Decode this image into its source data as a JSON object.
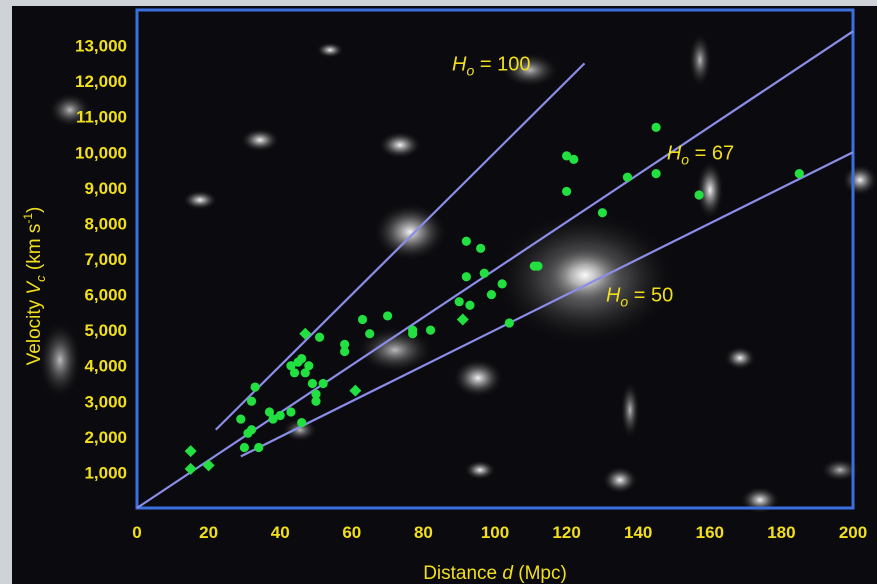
{
  "chart_data": {
    "type": "scatter",
    "title": "",
    "xlabel": {
      "pre": "Distance ",
      "var": "d",
      "post": " (Mpc)"
    },
    "ylabel": {
      "pre": "Velocity ",
      "var": "V",
      "sub": "c",
      "post": " (km s",
      "sup": "-1",
      "end": ")"
    },
    "xlim": [
      0,
      200
    ],
    "ylim": [
      0,
      14000
    ],
    "x_ticks": [
      0,
      20,
      40,
      60,
      80,
      100,
      120,
      140,
      160,
      180,
      200
    ],
    "x_tick_labels": [
      "0",
      "20",
      "40",
      "60",
      "80",
      "100",
      "120",
      "140",
      "160",
      "180",
      "200"
    ],
    "y_ticks": [
      1000,
      2000,
      3000,
      4000,
      5000,
      6000,
      7000,
      8000,
      9000,
      10000,
      11000,
      12000,
      13000
    ],
    "y_tick_labels": [
      "1,000",
      "2,000",
      "3,000",
      "4,000",
      "5,000",
      "6,000",
      "7,000",
      "8,000",
      "9,000",
      "10,000",
      "11,000",
      "12,000",
      "13,000"
    ],
    "colors": {
      "frame": "#3b6fe0",
      "lines": "#8a8ee8",
      "points": "#22e040",
      "text": "#f2df1c",
      "background": "#0b0b0f"
    },
    "fit_lines": [
      {
        "label_base": "H",
        "label_sub": "o",
        "label_rest": " = 100",
        "H0": 100,
        "x_range": [
          22,
          125
        ],
        "label_at": [
          88,
          12300
        ]
      },
      {
        "label_base": "H",
        "label_sub": "o",
        "label_rest": " = 67",
        "H0": 67,
        "x_range": [
          0,
          200
        ],
        "label_at": [
          148,
          9800
        ]
      },
      {
        "label_base": "H",
        "label_sub": "o",
        "label_rest": " = 50",
        "H0": 50,
        "x_range": [
          29,
          200
        ],
        "label_at": [
          131,
          5800
        ]
      }
    ],
    "series": [
      {
        "marker": "circle",
        "points": [
          [
            29,
            2500
          ],
          [
            30,
            1700
          ],
          [
            31,
            2100
          ],
          [
            32,
            2200
          ],
          [
            32,
            3000
          ],
          [
            33,
            3400
          ],
          [
            34,
            1700
          ],
          [
            37,
            2700
          ],
          [
            38,
            2500
          ],
          [
            40,
            2600
          ],
          [
            43,
            2700
          ],
          [
            43,
            4000
          ],
          [
            44,
            3800
          ],
          [
            45,
            4100
          ],
          [
            46,
            2400
          ],
          [
            46,
            4200
          ],
          [
            47,
            3800
          ],
          [
            48,
            4000
          ],
          [
            49,
            3500
          ],
          [
            50,
            3200
          ],
          [
            50,
            3000
          ],
          [
            51,
            4800
          ],
          [
            52,
            3500
          ],
          [
            58,
            4600
          ],
          [
            58,
            4400
          ],
          [
            63,
            5300
          ],
          [
            65,
            4900
          ],
          [
            70,
            5400
          ],
          [
            77,
            4900
          ],
          [
            77,
            5000
          ],
          [
            82,
            5000
          ],
          [
            90,
            5800
          ],
          [
            92,
            7500
          ],
          [
            92,
            6500
          ],
          [
            93,
            5700
          ],
          [
            96,
            7300
          ],
          [
            97,
            6600
          ],
          [
            99,
            6000
          ],
          [
            102,
            6300
          ],
          [
            104,
            5200
          ],
          [
            111,
            6800
          ],
          [
            112,
            6800
          ],
          [
            120,
            9900
          ],
          [
            120,
            8900
          ],
          [
            122,
            9800
          ],
          [
            130,
            8300
          ],
          [
            137,
            9300
          ],
          [
            145,
            10700
          ],
          [
            145,
            9400
          ],
          [
            157,
            8800
          ],
          [
            185,
            9400
          ]
        ]
      },
      {
        "marker": "diamond",
        "points": [
          [
            15,
            1100
          ],
          [
            15,
            1600
          ],
          [
            20,
            1200
          ],
          [
            47,
            4900
          ],
          [
            61,
            3300
          ],
          [
            91,
            5300
          ]
        ]
      }
    ]
  }
}
